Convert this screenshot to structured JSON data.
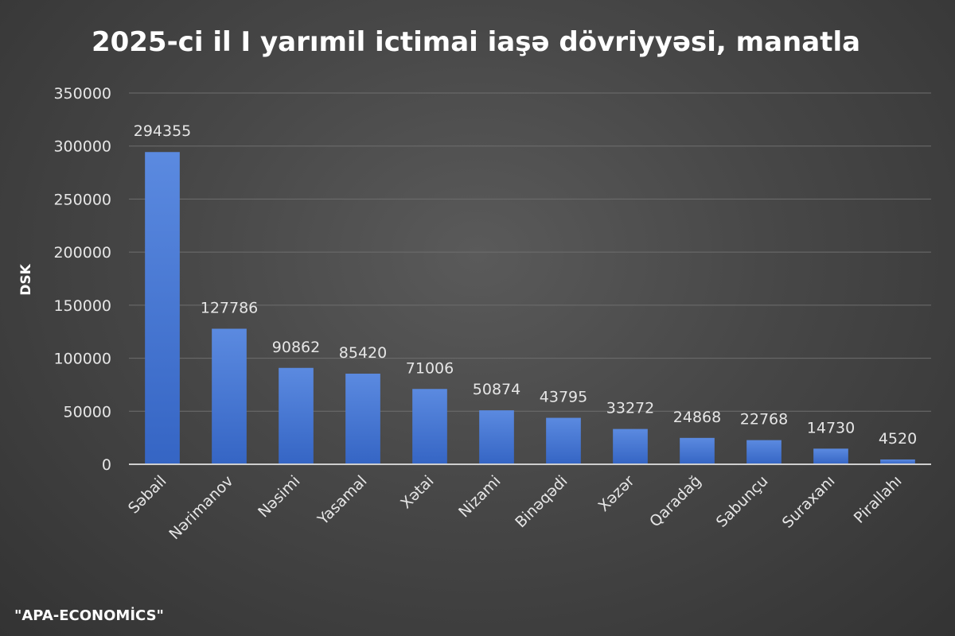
{
  "source": "\"APA-ECONOMİCS\"",
  "chart_data": {
    "type": "bar",
    "title": "2025-ci il I yarımil ictimai iaşə dövriyyəsi, manatla",
    "xlabel": "",
    "ylabel": "DSK",
    "ylim": [
      0,
      350000
    ],
    "yticks": [
      0,
      50000,
      100000,
      150000,
      200000,
      250000,
      300000,
      350000
    ],
    "ytick_labels": [
      "0",
      "50000",
      "100000",
      "150000",
      "200000",
      "250000",
      "300000",
      "350000"
    ],
    "grid": true,
    "legend": "none",
    "bar_color": "#4a7bd6",
    "categories": [
      "Səbail",
      "Nərimanov",
      "Nəsimi",
      "Yasamal",
      "Xətai",
      "Nizami",
      "Binəqədi",
      "Xəzər",
      "Qaradağ",
      "Sabunçu",
      "Suraxanı",
      "Pirallahı"
    ],
    "values": [
      294355,
      127786,
      90862,
      85420,
      71006,
      50874,
      43795,
      33272,
      24868,
      22768,
      14730,
      4520
    ],
    "value_labels": [
      "294355",
      "127786",
      "90862",
      "85420",
      "71006",
      "50874",
      "43795",
      "33272",
      "24868",
      "22768",
      "14730",
      "4520"
    ]
  }
}
